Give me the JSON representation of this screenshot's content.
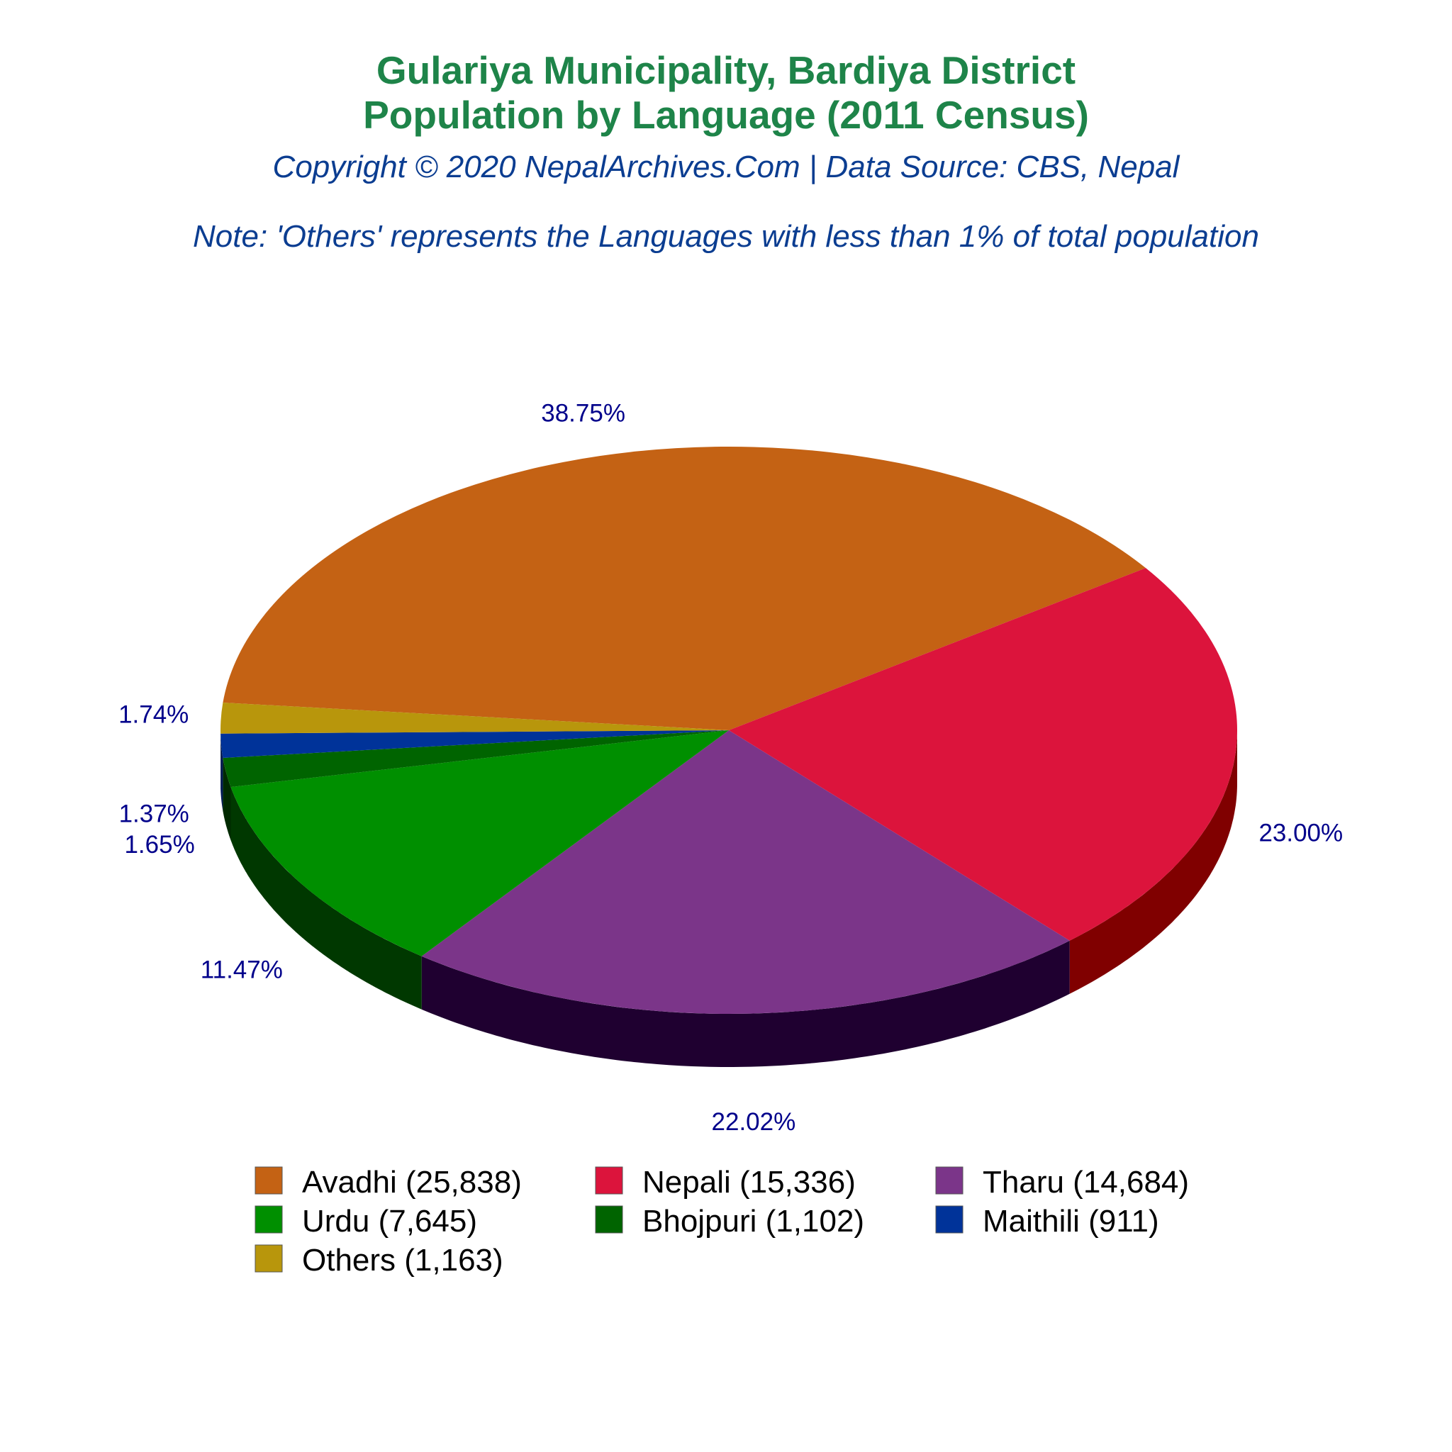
{
  "chart_data": {
    "type": "pie",
    "title": [
      "Gulariya Municipality, Bardiya District",
      "Population by Language (2011 Census)"
    ],
    "subtitle": "Copyright © 2020 NepalArchives.Com | Data Source: CBS, Nepal",
    "note": "Note: 'Others' represents the Languages with less than 1% of total population",
    "legend_position": "bottom",
    "slices": [
      {
        "label": "Avadhi (25,838)",
        "value": 25838,
        "percent": "38.75%",
        "color": "#c46214",
        "side_color": "#7a3a08"
      },
      {
        "label": "Nepali (15,336)",
        "value": 15336,
        "percent": "23.00%",
        "color": "#dc143c",
        "side_color": "#800000"
      },
      {
        "label": "Tharu (14,684)",
        "value": 14684,
        "percent": "22.02%",
        "color": "#7b3589",
        "side_color": "#1f0030"
      },
      {
        "label": "Urdu (7,645)",
        "value": 7645,
        "percent": "11.47%",
        "color": "#008f00",
        "side_color": "#003800"
      },
      {
        "label": "Bhojpuri (1,102)",
        "value": 1102,
        "percent": "1.65%",
        "color": "#006400",
        "side_color": "#002a00"
      },
      {
        "label": "Maithili (911)",
        "value": 911,
        "percent": "1.37%",
        "color": "#003399",
        "side_color": "#001a55"
      },
      {
        "label": "Others (1,163)",
        "value": 1163,
        "percent": "1.74%",
        "color": "#b8960c",
        "side_color": "#6b5600"
      }
    ]
  }
}
